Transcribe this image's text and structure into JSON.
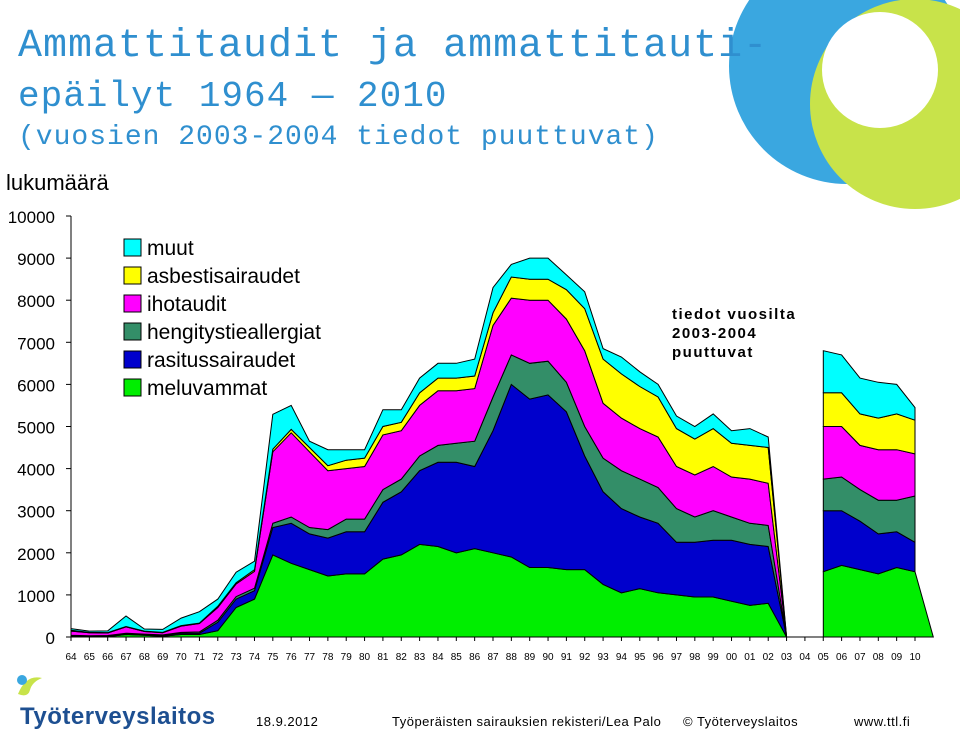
{
  "slide": {
    "title_line1": "Ammattitaudit ja ammattitauti-",
    "title_line2": "epäilyt 1964 — 2010",
    "title_line3": "(vuosien 2003-2004 tiedot puuttuvat)",
    "logo_name": "Työterveyslaitos",
    "colors": {
      "title": "#2f8fcf",
      "logo": "#1d4f91",
      "deco_blue": "#3aa7e0",
      "deco_green": "#c8e34a"
    }
  },
  "footer": {
    "date": "18.9.2012",
    "source": "Työperäisten sairauksien rekisteri/Lea Palo",
    "copyright": "© Työterveyslaitos",
    "url": "www.ttl.fi"
  },
  "chart_data": {
    "type": "area",
    "stacked": true,
    "ylabel": "lukumäärä",
    "ylim": [
      0,
      10000
    ],
    "yticks": [
      0,
      1000,
      2000,
      3000,
      4000,
      5000,
      6000,
      7000,
      8000,
      9000,
      10000
    ],
    "legend_position": "top-left",
    "grid": false,
    "annotation": [
      "tiedot vuosilta",
      "2003-2004",
      "puuttuvat"
    ],
    "categories": [
      "64",
      "65",
      "66",
      "67",
      "68",
      "69",
      "70",
      "71",
      "72",
      "73",
      "74",
      "75",
      "76",
      "77",
      "78",
      "79",
      "80",
      "81",
      "82",
      "83",
      "84",
      "85",
      "86",
      "87",
      "88",
      "89",
      "90",
      "91",
      "92",
      "93",
      "94",
      "95",
      "96",
      "97",
      "98",
      "99",
      "00",
      "01",
      "02",
      "03",
      "04",
      "05",
      "06",
      "07",
      "08",
      "09",
      "10"
    ],
    "series": [
      {
        "name": "meluvammat",
        "color": "#00ee00",
        "values": [
          10,
          5,
          10,
          60,
          40,
          20,
          60,
          60,
          150,
          700,
          900,
          1950,
          1750,
          1600,
          1450,
          1500,
          1500,
          1850,
          1950,
          2200,
          2150,
          2000,
          2100,
          2000,
          1900,
          1650,
          1650,
          1600,
          1600,
          1250,
          1050,
          1150,
          1050,
          1000,
          950,
          950,
          850,
          750,
          800,
          null,
          null,
          1550,
          1700,
          1600,
          1500,
          1650,
          1550
        ]
      },
      {
        "name": "rasitussairaudet",
        "color": "#0000cc",
        "values": [
          20,
          15,
          15,
          20,
          20,
          20,
          30,
          30,
          200,
          200,
          200,
          650,
          950,
          850,
          900,
          1000,
          1000,
          1350,
          1500,
          1750,
          2000,
          2150,
          1950,
          2900,
          4100,
          4000,
          4100,
          3750,
          2700,
          2200,
          2000,
          1700,
          1650,
          1250,
          1300,
          1350,
          1450,
          1450,
          1350,
          null,
          null,
          1450,
          1300,
          1150,
          950,
          850,
          700
        ]
      },
      {
        "name": "hengitystieallergiat",
        "color": "#338e68",
        "values": [
          10,
          10,
          10,
          10,
          10,
          10,
          20,
          30,
          50,
          60,
          60,
          100,
          150,
          150,
          200,
          300,
          300,
          300,
          300,
          350,
          400,
          450,
          600,
          800,
          700,
          850,
          800,
          700,
          700,
          800,
          900,
          900,
          850,
          800,
          600,
          700,
          550,
          500,
          500,
          null,
          null,
          750,
          800,
          750,
          800,
          750,
          1100
        ]
      },
      {
        "name": "ihotaudit",
        "color": "#ff00ff",
        "values": [
          100,
          70,
          60,
          150,
          60,
          50,
          150,
          200,
          300,
          300,
          400,
          1700,
          2000,
          1800,
          1400,
          1200,
          1250,
          1300,
          1150,
          1200,
          1300,
          1250,
          1250,
          1700,
          1350,
          1500,
          1450,
          1500,
          1800,
          1300,
          1250,
          1200,
          1200,
          1000,
          1000,
          1050,
          950,
          1050,
          1000,
          null,
          null,
          1250,
          1200,
          1050,
          1200,
          1200,
          1000
        ]
      },
      {
        "name": "asbestisairaudet",
        "color": "#ffff00",
        "values": [
          20,
          10,
          10,
          10,
          10,
          10,
          10,
          10,
          30,
          30,
          40,
          60,
          80,
          100,
          120,
          200,
          200,
          200,
          200,
          300,
          300,
          300,
          300,
          300,
          500,
          500,
          500,
          700,
          1000,
          1050,
          1050,
          1000,
          950,
          900,
          850,
          900,
          800,
          800,
          850,
          null,
          null,
          800,
          800,
          750,
          750,
          850,
          800
        ]
      },
      {
        "name": "muut",
        "color": "#00ffff",
        "values": [
          40,
          30,
          40,
          250,
          50,
          70,
          180,
          270,
          170,
          250,
          200,
          830,
          570,
          150,
          380,
          250,
          200,
          400,
          300,
          350,
          350,
          350,
          400,
          600,
          300,
          500,
          500,
          350,
          400,
          250,
          400,
          350,
          300,
          300,
          300,
          350,
          300,
          400,
          250,
          null,
          null,
          1000,
          900,
          850,
          850,
          700,
          300
        ]
      }
    ]
  }
}
